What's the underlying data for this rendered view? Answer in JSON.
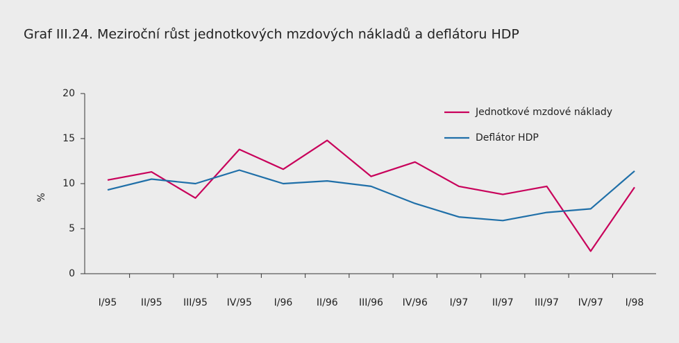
{
  "chart_data": {
    "type": "line",
    "title": "Graf III.24. Meziroční růst jednotkových mzdových nákladů a deflátoru HDP",
    "ylabel": "%",
    "categories": [
      "I/95",
      "II/95",
      "III/95",
      "IV/95",
      "I/96",
      "II/96",
      "III/96",
      "IV/96",
      "I/97",
      "II/97",
      "III/97",
      "IV/97",
      "I/98"
    ],
    "series": [
      {
        "name": "Jednotkové mzdové náklady",
        "color": "#c8005a",
        "values": [
          10.4,
          11.3,
          8.4,
          13.8,
          11.6,
          14.8,
          10.8,
          12.4,
          9.7,
          8.8,
          9.7,
          2.5,
          9.6
        ]
      },
      {
        "name": "Deflátor HDP",
        "color": "#1f6fa8",
        "values": [
          9.3,
          10.5,
          10.0,
          11.5,
          10.0,
          10.3,
          9.7,
          7.8,
          6.3,
          5.9,
          6.8,
          7.2,
          11.4
        ]
      }
    ],
    "ylim": [
      0,
      20
    ],
    "yticks": [
      0,
      5,
      10,
      15,
      20
    ],
    "legend": "upper right"
  }
}
